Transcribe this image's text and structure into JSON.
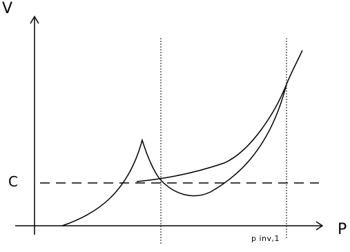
{
  "diagram": {
    "y_axis_label": "V",
    "x_axis_label": "P",
    "level_label": "C",
    "tick_label": "p inv,1"
  },
  "colors": {
    "line": "#000000",
    "background": "#ffffff"
  }
}
